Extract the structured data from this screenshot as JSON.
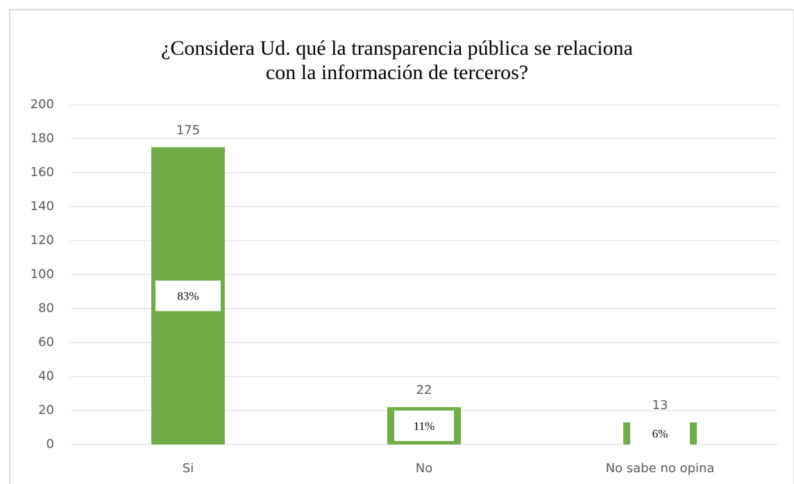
{
  "chart_data": {
    "type": "bar",
    "title": [
      "¿Considera Ud. qué la transparencia pública se relaciona",
      "con la información de terceros?"
    ],
    "categories": [
      "Si",
      "No",
      "No sabe no opina"
    ],
    "values": [
      175,
      22,
      13
    ],
    "percentages": [
      83,
      11,
      6
    ],
    "percentage_labels": [
      "83%",
      "11%",
      "6%"
    ],
    "color": "#70ad47",
    "ylim": [
      0,
      200
    ],
    "yticks": [
      0,
      20,
      40,
      60,
      80,
      100,
      120,
      140,
      160,
      180,
      200
    ],
    "grid": true
  }
}
